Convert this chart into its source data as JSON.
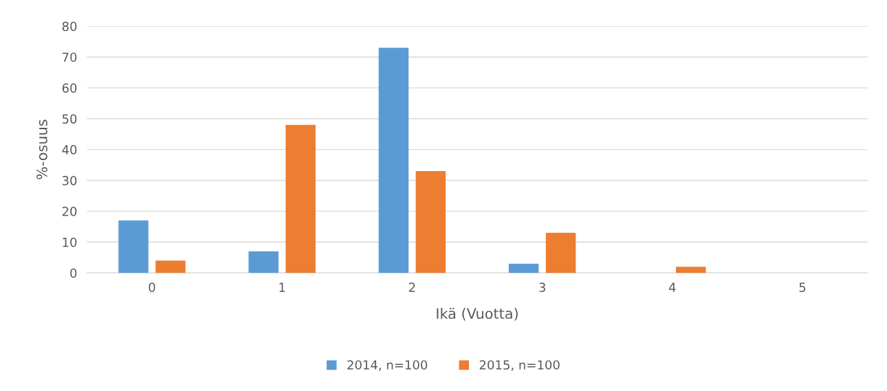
{
  "chart_data": {
    "type": "bar",
    "xlabel": "Ikä (Vuotta)",
    "ylabel": "%-osuus",
    "categories": [
      "0",
      "1",
      "2",
      "3",
      "4",
      "5"
    ],
    "series": [
      {
        "name": "2014, n=100",
        "color": "#5b9bd5",
        "values": [
          17,
          7,
          73,
          3,
          0,
          0
        ]
      },
      {
        "name": "2015, n=100",
        "color": "#ed7d31",
        "values": [
          4,
          48,
          33,
          13,
          2,
          0
        ]
      }
    ],
    "ylim": [
      0,
      80
    ],
    "yticks": [
      0,
      10,
      20,
      30,
      40,
      50,
      60,
      70,
      80
    ],
    "grid": "y",
    "legend": "bottom"
  }
}
